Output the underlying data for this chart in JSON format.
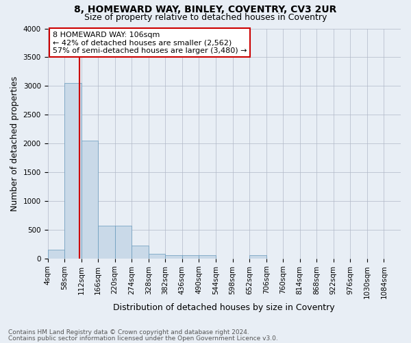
{
  "title": "8, HOMEWARD WAY, BINLEY, COVENTRY, CV3 2UR",
  "subtitle": "Size of property relative to detached houses in Coventry",
  "xlabel": "Distribution of detached houses by size in Coventry",
  "ylabel": "Number of detached properties",
  "footnote1": "Contains HM Land Registry data © Crown copyright and database right 2024.",
  "footnote2": "Contains public sector information licensed under the Open Government Licence v3.0.",
  "annotation_line1": "8 HOMEWARD WAY: 106sqm",
  "annotation_line2": "← 42% of detached houses are smaller (2,562)",
  "annotation_line3": "57% of semi-detached houses are larger (3,480) →",
  "bar_labels": [
    "4sqm",
    "58sqm",
    "112sqm",
    "166sqm",
    "220sqm",
    "274sqm",
    "328sqm",
    "382sqm",
    "436sqm",
    "490sqm",
    "544sqm",
    "598sqm",
    "652sqm",
    "706sqm",
    "760sqm",
    "814sqm",
    "868sqm",
    "922sqm",
    "976sqm",
    "1030sqm",
    "1084sqm"
  ],
  "bar_values": [
    150,
    3050,
    2050,
    570,
    570,
    225,
    80,
    55,
    55,
    55,
    0,
    0,
    55,
    0,
    0,
    0,
    0,
    0,
    0,
    0,
    0
  ],
  "bar_color": "#c9d9e8",
  "bar_edge_color": "#6699bb",
  "property_line_x": 106,
  "property_line_color": "#cc0000",
  "bg_color": "#e8eef5",
  "ylim": [
    0,
    4000
  ],
  "yticks": [
    0,
    500,
    1000,
    1500,
    2000,
    2500,
    3000,
    3500,
    4000
  ],
  "annotation_box_facecolor": "#ffffff",
  "annotation_box_edgecolor": "#cc0000",
  "title_fontsize": 10,
  "subtitle_fontsize": 9,
  "axis_label_fontsize": 9,
  "tick_fontsize": 7.5,
  "annotation_fontsize": 8,
  "footnote_fontsize": 6.5
}
